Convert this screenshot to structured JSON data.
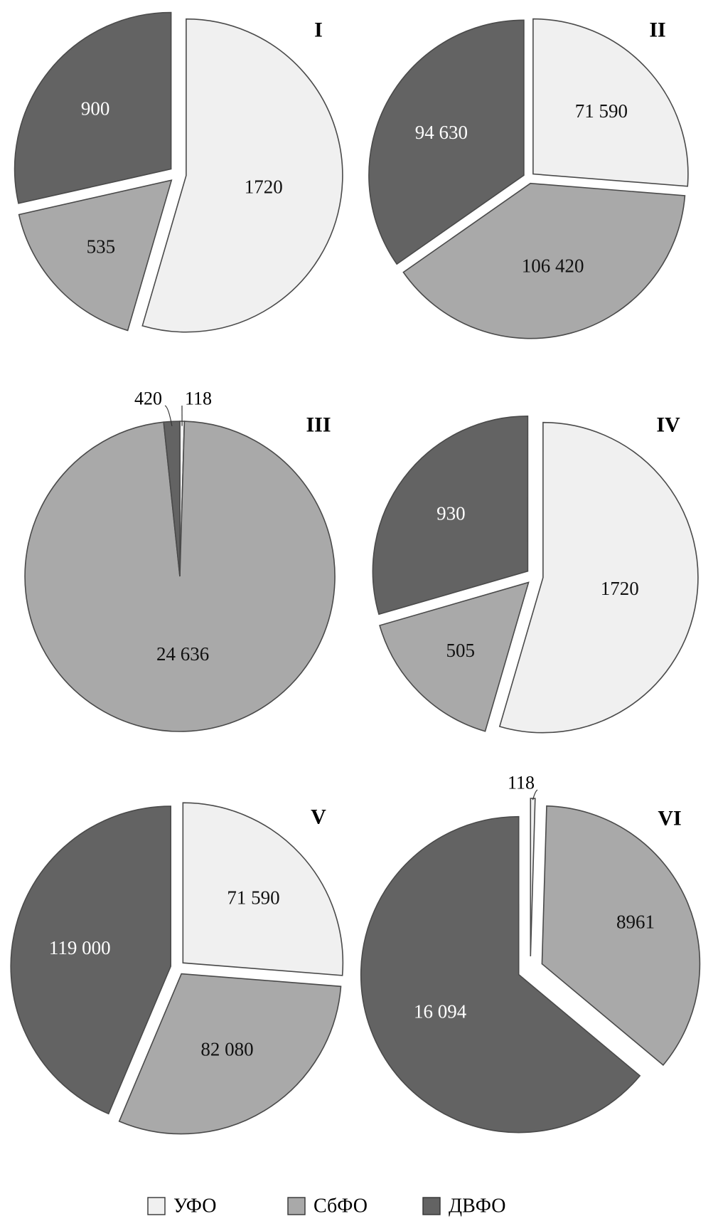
{
  "colors": {
    "УФО": "#f0f0f0",
    "СбФО": "#a9a9a9",
    "ДВФО": "#636363"
  },
  "legend": [
    {
      "name": "УФО",
      "color": "#f0f0f0"
    },
    {
      "name": "СбФО",
      "color": "#a9a9a9"
    },
    {
      "name": "ДВФО",
      "color": "#636363"
    }
  ],
  "chart_data": [
    {
      "type": "pie",
      "title": "I",
      "slices": [
        {
          "category": "УФО",
          "value": 1720,
          "label": "1720"
        },
        {
          "category": "СбФО",
          "value": 535,
          "label": "535"
        },
        {
          "category": "ДВФО",
          "value": 900,
          "label": "900"
        }
      ]
    },
    {
      "type": "pie",
      "title": "II",
      "slices": [
        {
          "category": "УФО",
          "value": 71590,
          "label": "71 590"
        },
        {
          "category": "СбФО",
          "value": 106420,
          "label": "106 420"
        },
        {
          "category": "ДВФО",
          "value": 94630,
          "label": "94 630"
        }
      ]
    },
    {
      "type": "pie",
      "title": "III",
      "slices": [
        {
          "category": "УФО",
          "value": 118,
          "label": "118"
        },
        {
          "category": "СбФО",
          "value": 24636,
          "label": "24 636"
        },
        {
          "category": "ДВФО",
          "value": 420,
          "label": "420"
        }
      ]
    },
    {
      "type": "pie",
      "title": "IV",
      "slices": [
        {
          "category": "УФО",
          "value": 1720,
          "label": "1720"
        },
        {
          "category": "СбФО",
          "value": 505,
          "label": "505"
        },
        {
          "category": "ДВФО",
          "value": 930,
          "label": "930"
        }
      ]
    },
    {
      "type": "pie",
      "title": "V",
      "slices": [
        {
          "category": "УФО",
          "value": 71590,
          "label": "71 590"
        },
        {
          "category": "СбФО",
          "value": 82080,
          "label": "82 080"
        },
        {
          "category": "ДВФО",
          "value": 119000,
          "label": "119 000"
        }
      ]
    },
    {
      "type": "pie",
      "title": "VI",
      "slices": [
        {
          "category": "УФО",
          "value": 118,
          "label": "118"
        },
        {
          "category": "СбФО",
          "value": 8961,
          "label": "8961"
        },
        {
          "category": "ДВФО",
          "value": 16094,
          "label": "16 094"
        }
      ]
    }
  ]
}
